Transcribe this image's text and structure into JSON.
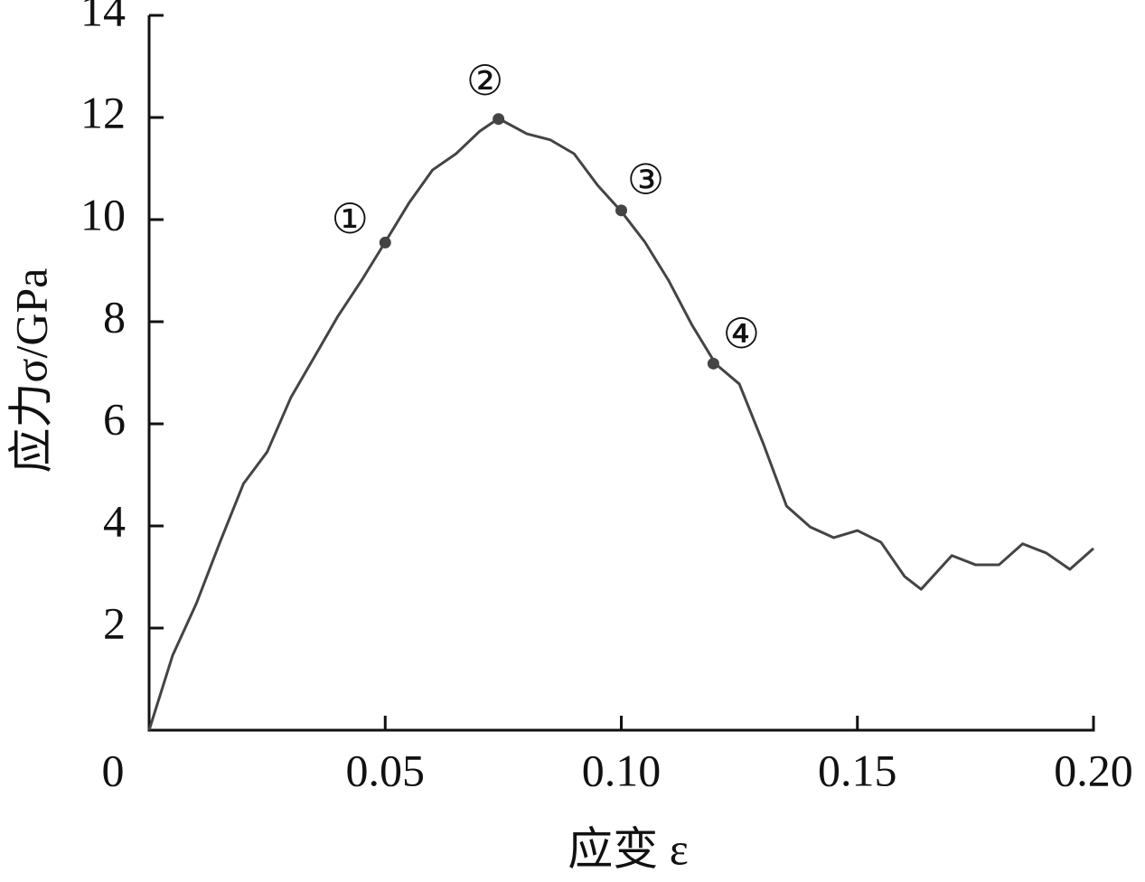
{
  "chart_data": {
    "type": "line",
    "xlabel": "应变 ε",
    "ylabel": "应力σ/GPa",
    "xlim": [
      0,
      0.2
    ],
    "ylim": [
      0,
      14
    ],
    "xticks": [
      0,
      0.05,
      {
        "value": 0.1,
        "label": "0.10"
      },
      0.15,
      {
        "value": 0.2,
        "label": "0.20"
      }
    ],
    "yticks": [
      2,
      4,
      6,
      8,
      10,
      12,
      14
    ],
    "color": "#444444",
    "x": [
      0,
      0.005,
      0.01,
      0.015,
      0.02,
      0.025,
      0.03,
      0.035,
      0.04,
      0.045,
      0.05,
      0.055,
      0.06,
      0.065,
      0.07,
      0.074,
      0.08,
      0.085,
      0.09,
      0.095,
      0.1,
      0.105,
      0.11,
      0.115,
      0.12,
      0.125,
      0.13,
      0.135,
      0.14,
      0.145,
      0.15,
      0.155,
      0.16,
      0.1635,
      0.17,
      0.175,
      0.18,
      0.185,
      0.19,
      0.195,
      0.2
    ],
    "values": [
      0,
      1.47,
      2.48,
      3.68,
      4.83,
      5.45,
      6.51,
      7.31,
      8.11,
      8.81,
      9.56,
      10.32,
      10.97,
      11.29,
      11.73,
      11.98,
      11.68,
      11.56,
      11.29,
      10.67,
      10.16,
      9.56,
      8.81,
      7.93,
      7.17,
      6.78,
      5.63,
      4.39,
      3.98,
      3.77,
      3.91,
      3.68,
      3.01,
      2.76,
      3.42,
      3.24,
      3.24,
      3.65,
      3.47,
      3.15,
      3.56
    ],
    "annotations": [
      {
        "label": "①",
        "x": 0.05,
        "y": 9.55
      },
      {
        "label": "②",
        "x": 0.074,
        "y": 11.97
      },
      {
        "label": "③",
        "x": 0.1,
        "y": 10.18
      },
      {
        "label": "④",
        "x": 0.1195,
        "y": 7.18
      }
    ]
  }
}
